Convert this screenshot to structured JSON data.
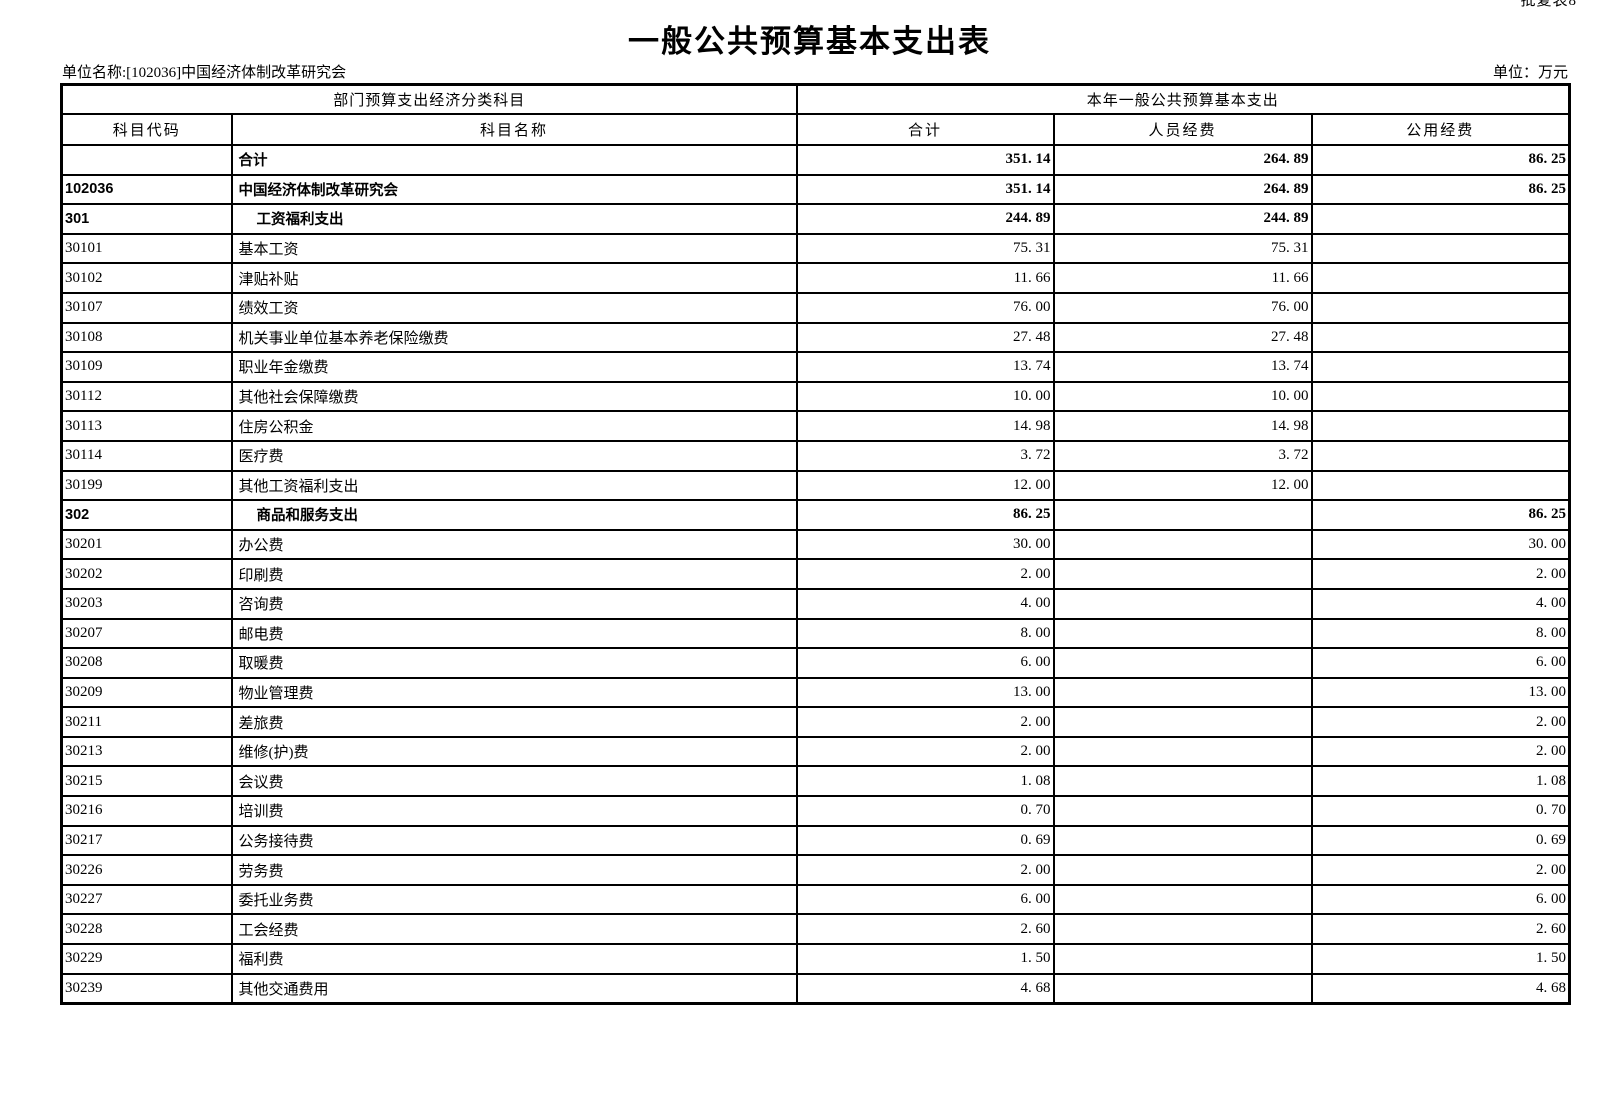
{
  "page": {
    "corner_note": "批复表8",
    "title": "一般公共预算基本支出表",
    "unit_name": "单位名称:[102036]中国经济体制改革研究会",
    "unit_label": "单位：万元"
  },
  "table": {
    "group_headers": {
      "left": "部门预算支出经济分类科目",
      "right": "本年一般公共预算基本支出"
    },
    "columns": [
      "科目代码",
      "科目名称",
      "合计",
      "人员经费",
      "公用经费"
    ],
    "rows": [
      {
        "code": "",
        "name": "合计",
        "total": "351. 14",
        "personnel": "264. 89",
        "public": "86. 25",
        "bold": true,
        "indent": false
      },
      {
        "code": "102036",
        "name": "中国经济体制改革研究会",
        "total": "351. 14",
        "personnel": "264. 89",
        "public": "86. 25",
        "bold": true,
        "indent": false
      },
      {
        "code": "301",
        "name": "工资福利支出",
        "total": "244. 89",
        "personnel": "244. 89",
        "public": "",
        "bold": true,
        "indent": true
      },
      {
        "code": "30101",
        "name": "基本工资",
        "total": "75. 31",
        "personnel": "75. 31",
        "public": "",
        "bold": false,
        "indent": false
      },
      {
        "code": "30102",
        "name": "津贴补贴",
        "total": "11. 66",
        "personnel": "11. 66",
        "public": "",
        "bold": false,
        "indent": false
      },
      {
        "code": "30107",
        "name": "绩效工资",
        "total": "76. 00",
        "personnel": "76. 00",
        "public": "",
        "bold": false,
        "indent": false
      },
      {
        "code": "30108",
        "name": "机关事业单位基本养老保险缴费",
        "total": "27. 48",
        "personnel": "27. 48",
        "public": "",
        "bold": false,
        "indent": false
      },
      {
        "code": "30109",
        "name": "职业年金缴费",
        "total": "13. 74",
        "personnel": "13. 74",
        "public": "",
        "bold": false,
        "indent": false
      },
      {
        "code": "30112",
        "name": "其他社会保障缴费",
        "total": "10. 00",
        "personnel": "10. 00",
        "public": "",
        "bold": false,
        "indent": false
      },
      {
        "code": "30113",
        "name": "住房公积金",
        "total": "14. 98",
        "personnel": "14. 98",
        "public": "",
        "bold": false,
        "indent": false
      },
      {
        "code": "30114",
        "name": "医疗费",
        "total": "3. 72",
        "personnel": "3. 72",
        "public": "",
        "bold": false,
        "indent": false
      },
      {
        "code": "30199",
        "name": "其他工资福利支出",
        "total": "12. 00",
        "personnel": "12. 00",
        "public": "",
        "bold": false,
        "indent": false
      },
      {
        "code": "302",
        "name": "商品和服务支出",
        "total": "86. 25",
        "personnel": "",
        "public": "86. 25",
        "bold": true,
        "indent": true
      },
      {
        "code": "30201",
        "name": "办公费",
        "total": "30. 00",
        "personnel": "",
        "public": "30. 00",
        "bold": false,
        "indent": false
      },
      {
        "code": "30202",
        "name": "印刷费",
        "total": "2. 00",
        "personnel": "",
        "public": "2. 00",
        "bold": false,
        "indent": false
      },
      {
        "code": "30203",
        "name": "咨询费",
        "total": "4. 00",
        "personnel": "",
        "public": "4. 00",
        "bold": false,
        "indent": false
      },
      {
        "code": "30207",
        "name": "邮电费",
        "total": "8. 00",
        "personnel": "",
        "public": "8. 00",
        "bold": false,
        "indent": false
      },
      {
        "code": "30208",
        "name": "取暖费",
        "total": "6. 00",
        "personnel": "",
        "public": "6. 00",
        "bold": false,
        "indent": false
      },
      {
        "code": "30209",
        "name": "物业管理费",
        "total": "13. 00",
        "personnel": "",
        "public": "13. 00",
        "bold": false,
        "indent": false
      },
      {
        "code": "30211",
        "name": "差旅费",
        "total": "2. 00",
        "personnel": "",
        "public": "2. 00",
        "bold": false,
        "indent": false
      },
      {
        "code": "30213",
        "name": "维修(护)费",
        "total": "2. 00",
        "personnel": "",
        "public": "2. 00",
        "bold": false,
        "indent": false
      },
      {
        "code": "30215",
        "name": "会议费",
        "total": "1. 08",
        "personnel": "",
        "public": "1. 08",
        "bold": false,
        "indent": false
      },
      {
        "code": "30216",
        "name": "培训费",
        "total": "0. 70",
        "personnel": "",
        "public": "0. 70",
        "bold": false,
        "indent": false
      },
      {
        "code": "30217",
        "name": "公务接待费",
        "total": "0. 69",
        "personnel": "",
        "public": "0. 69",
        "bold": false,
        "indent": false
      },
      {
        "code": "30226",
        "name": "劳务费",
        "total": "2. 00",
        "personnel": "",
        "public": "2. 00",
        "bold": false,
        "indent": false
      },
      {
        "code": "30227",
        "name": "委托业务费",
        "total": "6. 00",
        "personnel": "",
        "public": "6. 00",
        "bold": false,
        "indent": false
      },
      {
        "code": "30228",
        "name": "工会经费",
        "total": "2. 60",
        "personnel": "",
        "public": "2. 60",
        "bold": false,
        "indent": false
      },
      {
        "code": "30229",
        "name": "福利费",
        "total": "1. 50",
        "personnel": "",
        "public": "1. 50",
        "bold": false,
        "indent": false
      },
      {
        "code": "30239",
        "name": "其他交通费用",
        "total": "4. 68",
        "personnel": "",
        "public": "4. 68",
        "bold": false,
        "indent": false
      }
    ]
  }
}
